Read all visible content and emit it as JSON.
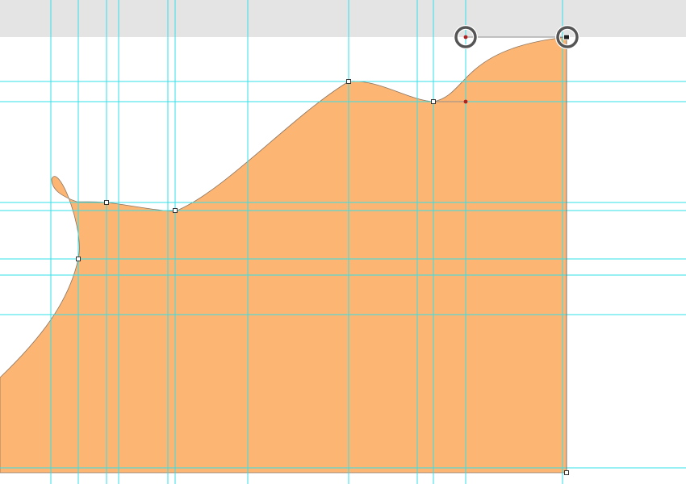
{
  "canvas": {
    "background_color": "#ffffff",
    "pasteboard_color": "#e4e4e4",
    "guide_color": "#33e0e8"
  },
  "shape": {
    "kind": "closed-bezier-path",
    "fill_color": "#fdb574",
    "stroke_color": "#8a7560",
    "anchor_count": 8
  },
  "selection": {
    "anchor_color": "#ffffff",
    "anchor_stroke_color": "#333333",
    "handle_color": "#b02020",
    "handle_line_color": "#8e8e8e",
    "highlight_ring_color": "#555555",
    "highlight_ring_count": 2
  }
}
